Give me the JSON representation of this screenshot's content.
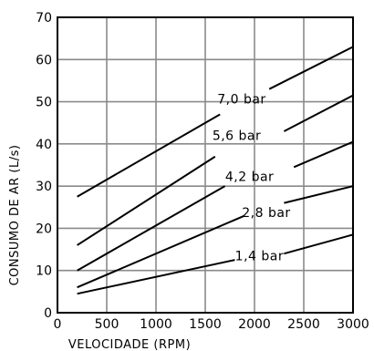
{
  "chart_data": {
    "type": "line",
    "title": "",
    "xlabel": "VELOCIDADE (RPM)",
    "ylabel": "CONSUMO DE AR (L/s)",
    "xlim": [
      0,
      3000
    ],
    "ylim": [
      0,
      70
    ],
    "x_ticks": [
      "0",
      "500",
      "1000",
      "1500",
      "2000",
      "2500",
      "3000"
    ],
    "y_ticks": [
      "0",
      "10",
      "20",
      "30",
      "40",
      "50",
      "60",
      "70"
    ],
    "grid": true,
    "legend": "none",
    "series": [
      {
        "name": "1,4 bar",
        "x": [
          200,
          1800
        ],
        "y": [
          4.5,
          12.5
        ],
        "label_xy": [
          1860,
          14
        ],
        "label_x": 2050,
        "label_y": 13.5,
        "tail": [
          [
            2300,
            14
          ],
          [
            3000,
            18.5
          ]
        ]
      },
      {
        "name": "2,8 bar",
        "x": [
          200,
          1900
        ],
        "y": [
          6,
          23
        ],
        "label_xy": [
          1930,
          24
        ],
        "label_x": 2120,
        "label_y": 23.8,
        "tail": [
          [
            2300,
            26
          ],
          [
            3000,
            30
          ]
        ]
      },
      {
        "name": "4,2 bar",
        "x": [
          200,
          1700
        ],
        "y": [
          10,
          30
        ],
        "label_xy": [
          1750,
          31.5
        ],
        "label_x": 1950,
        "label_y": 32.3,
        "tail": [
          [
            2400,
            34.5
          ],
          [
            3000,
            40.5
          ]
        ]
      },
      {
        "name": "5,6 bar",
        "x": [
          200,
          1600
        ],
        "y": [
          16,
          37
        ],
        "label_xy": [
          1650,
          38.5
        ],
        "label_x": 1820,
        "label_y": 42,
        "tail": [
          [
            2300,
            43
          ],
          [
            3000,
            51.5
          ]
        ]
      },
      {
        "name": "7,0 bar",
        "x": [
          200,
          1650
        ],
        "y": [
          27.5,
          47
        ],
        "label_xy": [
          1700,
          48.5
        ],
        "label_x": 1870,
        "label_y": 50.7,
        "tail": [
          [
            2150,
            53
          ],
          [
            3000,
            63
          ]
        ]
      }
    ]
  }
}
